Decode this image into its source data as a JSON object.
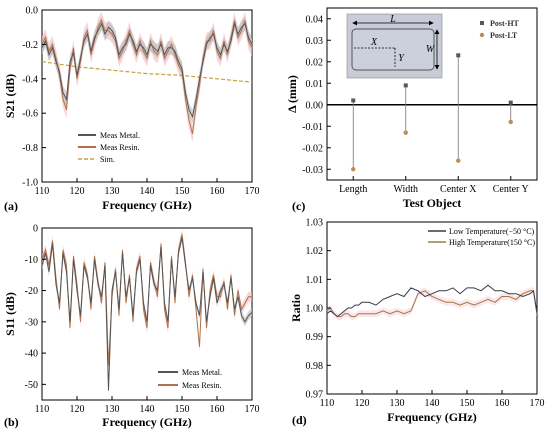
{
  "panels": [
    {
      "letter": "(a)"
    },
    {
      "letter": "(b)"
    },
    {
      "letter": "(c)"
    },
    {
      "letter": "(d)"
    }
  ],
  "colors": {
    "metal": "#555555",
    "metal_band": "#b8b8b8",
    "resin": "#b0724a",
    "resin_band": "#f4b9c0",
    "sim": "#c8a040",
    "post_ht": "#555566",
    "post_lt": "#c08a55",
    "low_t": "#3a3a4a",
    "high_t": "#a07848",
    "inset_fill": "#c9ccd8"
  },
  "chart_data": [
    {
      "id": "a",
      "type": "line",
      "xlabel": "Frequency (GHz)",
      "ylabel": "S21 (dB)",
      "xlim": [
        110,
        170
      ],
      "ylim": [
        -1.0,
        0.0
      ],
      "xticks": [
        "110",
        "120",
        "130",
        "140",
        "150",
        "160",
        "170"
      ],
      "yticks": [
        "-1.0",
        "-0.8",
        "-0.6",
        "-0.4",
        "-0.2",
        "0.0"
      ],
      "legend": "bottom-left",
      "series": [
        {
          "name": "Meas Metal.",
          "x": [
            110,
            111,
            112,
            113,
            114,
            115,
            116,
            117,
            118,
            119,
            120,
            121,
            122,
            123,
            124,
            125,
            126,
            127,
            128,
            129,
            130,
            131,
            132,
            133,
            134,
            135,
            136,
            137,
            138,
            139,
            140,
            141,
            142,
            143,
            144,
            145,
            146,
            147,
            148,
            149,
            150,
            151,
            152,
            153,
            154,
            155,
            156,
            157,
            158,
            159,
            160,
            161,
            162,
            163,
            164,
            165,
            166,
            167,
            168,
            169,
            170
          ],
          "y": [
            -0.22,
            -0.18,
            -0.26,
            -0.22,
            -0.3,
            -0.36,
            -0.48,
            -0.52,
            -0.3,
            -0.25,
            -0.38,
            -0.28,
            -0.18,
            -0.14,
            -0.24,
            -0.16,
            -0.12,
            -0.08,
            -0.14,
            -0.1,
            -0.12,
            -0.16,
            -0.26,
            -0.22,
            -0.2,
            -0.14,
            -0.18,
            -0.24,
            -0.2,
            -0.22,
            -0.26,
            -0.2,
            -0.22,
            -0.24,
            -0.2,
            -0.26,
            -0.22,
            -0.22,
            -0.24,
            -0.3,
            -0.34,
            -0.48,
            -0.58,
            -0.62,
            -0.52,
            -0.4,
            -0.3,
            -0.2,
            -0.16,
            -0.14,
            -0.22,
            -0.26,
            -0.2,
            -0.24,
            -0.18,
            -0.08,
            -0.14,
            -0.1,
            -0.08,
            -0.16,
            -0.2
          ]
        },
        {
          "name": "Meas Resin.",
          "x": [
            110,
            111,
            112,
            113,
            114,
            115,
            116,
            117,
            118,
            119,
            120,
            121,
            122,
            123,
            124,
            125,
            126,
            127,
            128,
            129,
            130,
            131,
            132,
            133,
            134,
            135,
            136,
            137,
            138,
            139,
            140,
            141,
            142,
            143,
            144,
            145,
            146,
            147,
            148,
            149,
            150,
            151,
            152,
            153,
            154,
            155,
            156,
            157,
            158,
            159,
            160,
            161,
            162,
            163,
            164,
            165,
            166,
            167,
            168,
            169,
            170
          ],
          "y": [
            -0.2,
            -0.16,
            -0.24,
            -0.2,
            -0.28,
            -0.38,
            -0.52,
            -0.58,
            -0.34,
            -0.22,
            -0.4,
            -0.3,
            -0.16,
            -0.12,
            -0.26,
            -0.18,
            -0.1,
            -0.06,
            -0.12,
            -0.12,
            -0.14,
            -0.18,
            -0.28,
            -0.24,
            -0.18,
            -0.12,
            -0.2,
            -0.26,
            -0.18,
            -0.24,
            -0.28,
            -0.18,
            -0.24,
            -0.26,
            -0.18,
            -0.28,
            -0.24,
            -0.2,
            -0.26,
            -0.32,
            -0.36,
            -0.52,
            -0.64,
            -0.72,
            -0.56,
            -0.44,
            -0.28,
            -0.18,
            -0.18,
            -0.12,
            -0.24,
            -0.28,
            -0.18,
            -0.26,
            -0.16,
            -0.06,
            -0.16,
            -0.12,
            -0.06,
            -0.18,
            -0.22
          ]
        },
        {
          "name": "Sim.",
          "x": [
            110,
            120,
            130,
            140,
            150,
            160,
            170
          ],
          "y": [
            -0.3,
            -0.33,
            -0.35,
            -0.37,
            -0.38,
            -0.4,
            -0.42
          ]
        }
      ]
    },
    {
      "id": "b",
      "type": "line",
      "xlabel": "Frequency (GHz)",
      "ylabel": "S11 (dB)",
      "xlim": [
        110,
        170
      ],
      "ylim": [
        -55,
        0
      ],
      "xticks": [
        "110",
        "120",
        "130",
        "140",
        "150",
        "160",
        "170"
      ],
      "yticks": [
        "-50",
        "-40",
        "-30",
        "-20",
        "-10",
        "0"
      ],
      "legend": "bottom-right",
      "series": [
        {
          "name": "Meas Metal.",
          "x": [
            110,
            111,
            112,
            113,
            114,
            115,
            116,
            117,
            118,
            119,
            120,
            121,
            122,
            123,
            124,
            125,
            126,
            127,
            128,
            129,
            130,
            131,
            132,
            133,
            134,
            135,
            136,
            137,
            138,
            139,
            140,
            141,
            142,
            143,
            144,
            145,
            146,
            147,
            148,
            149,
            150,
            151,
            152,
            153,
            154,
            155,
            156,
            157,
            158,
            159,
            160,
            161,
            162,
            163,
            164,
            165,
            166,
            167,
            168,
            169,
            170
          ],
          "y": [
            -12,
            -8,
            -14,
            -5,
            -18,
            -24,
            -8,
            -14,
            -30,
            -10,
            -20,
            -28,
            -12,
            -16,
            -24,
            -10,
            -18,
            -22,
            -12,
            -52,
            -20,
            -14,
            -26,
            -8,
            -22,
            -16,
            -28,
            -14,
            -10,
            -24,
            -30,
            -12,
            -18,
            -20,
            -6,
            -24,
            -30,
            -10,
            -22,
            -8,
            -3,
            -12,
            -20,
            -16,
            -24,
            -28,
            -14,
            -30,
            -22,
            -16,
            -24,
            -20,
            -18,
            -24,
            -16,
            -26,
            -22,
            -28,
            -30,
            -28,
            -27
          ]
        },
        {
          "name": "Meas Resin.",
          "x": [
            110,
            111,
            112,
            113,
            114,
            115,
            116,
            117,
            118,
            119,
            120,
            121,
            122,
            123,
            124,
            125,
            126,
            127,
            128,
            129,
            130,
            131,
            132,
            133,
            134,
            135,
            136,
            137,
            138,
            139,
            140,
            141,
            142,
            143,
            144,
            145,
            146,
            147,
            148,
            149,
            150,
            151,
            152,
            153,
            154,
            155,
            156,
            157,
            158,
            159,
            160,
            161,
            162,
            163,
            164,
            165,
            166,
            167,
            168,
            169,
            170
          ],
          "y": [
            -10,
            -7,
            -12,
            -4,
            -16,
            -26,
            -7,
            -12,
            -32,
            -9,
            -18,
            -30,
            -11,
            -15,
            -26,
            -9,
            -17,
            -24,
            -11,
            -44,
            -22,
            -13,
            -28,
            -7,
            -24,
            -15,
            -30,
            -13,
            -9,
            -26,
            -32,
            -11,
            -17,
            -22,
            -5,
            -26,
            -32,
            -9,
            -24,
            -7,
            -2,
            -11,
            -22,
            -15,
            -26,
            -38,
            -13,
            -32,
            -20,
            -15,
            -22,
            -22,
            -17,
            -26,
            -15,
            -28,
            -20,
            -26,
            -24,
            -22,
            -22
          ]
        }
      ]
    },
    {
      "id": "c",
      "type": "scatter",
      "xlabel": "Test Object",
      "ylabel": "Δ (mm)",
      "ylim": [
        -0.035,
        0.045
      ],
      "yticks": [
        "-0.03",
        "-0.02",
        "-0.01",
        "0.00",
        "0.01",
        "0.02",
        "0.03",
        "0.04"
      ],
      "categories": [
        "Length",
        "Width",
        "Center X",
        "Center Y"
      ],
      "legend": "top-right",
      "series": [
        {
          "name": "Post-HT",
          "values": [
            0.002,
            0.009,
            0.023,
            0.001
          ]
        },
        {
          "name": "Post-LT",
          "values": [
            -0.03,
            -0.013,
            -0.026,
            -0.008
          ]
        }
      ],
      "inset_labels": {
        "length": "L",
        "width": "W",
        "center_x": "X",
        "center_y": "Y"
      }
    },
    {
      "id": "d",
      "type": "line",
      "xlabel": "Frequency (GHz)",
      "ylabel": "Ratio",
      "xlim": [
        110,
        170
      ],
      "ylim": [
        0.97,
        1.03
      ],
      "xticks": [
        "110",
        "120",
        "130",
        "140",
        "150",
        "160",
        "170"
      ],
      "yticks": [
        "0.97",
        "0.98",
        "0.99",
        "1.00",
        "1.01",
        "1.02",
        "1.03"
      ],
      "legend": "top-right",
      "series": [
        {
          "name": "Low Temperature(−50 °C)",
          "x": [
            110,
            111,
            112,
            113,
            114,
            115,
            116,
            117,
            118,
            119,
            120,
            122,
            124,
            126,
            128,
            130,
            132,
            134,
            136,
            138,
            140,
            142,
            144,
            146,
            148,
            150,
            152,
            154,
            156,
            158,
            160,
            162,
            164,
            166,
            168,
            169,
            170
          ],
          "y": [
            0.998,
            0.999,
            0.998,
            0.997,
            0.998,
            0.999,
            1.0,
            1.0,
            1.001,
            1.001,
            1.002,
            1.002,
            1.001,
            1.003,
            1.004,
            1.005,
            1.004,
            1.007,
            1.006,
            1.004,
            1.005,
            1.006,
            1.006,
            1.007,
            1.005,
            1.007,
            1.007,
            1.006,
            1.008,
            1.006,
            1.006,
            1.005,
            1.005,
            1.004,
            1.005,
            1.006,
            0.998
          ]
        },
        {
          "name": "High Temperature(150 °C)",
          "x": [
            110,
            111,
            112,
            113,
            114,
            115,
            116,
            117,
            118,
            119,
            120,
            122,
            124,
            126,
            128,
            130,
            132,
            134,
            136,
            138,
            140,
            142,
            144,
            146,
            148,
            150,
            152,
            154,
            156,
            158,
            160,
            162,
            164,
            166,
            168,
            169,
            170
          ],
          "y": [
            0.999,
            1.0,
            0.998,
            0.997,
            0.997,
            0.998,
            0.998,
            0.997,
            0.997,
            0.998,
            0.998,
            0.998,
            0.998,
            0.999,
            0.998,
            0.999,
            0.998,
            0.999,
            1.005,
            1.006,
            1.004,
            1.003,
            1.002,
            1.002,
            1.001,
            1.002,
            1.001,
            1.002,
            1.003,
            1.002,
            1.004,
            1.004,
            1.003,
            1.005,
            1.006,
            1.006,
            0.998
          ]
        }
      ]
    }
  ]
}
